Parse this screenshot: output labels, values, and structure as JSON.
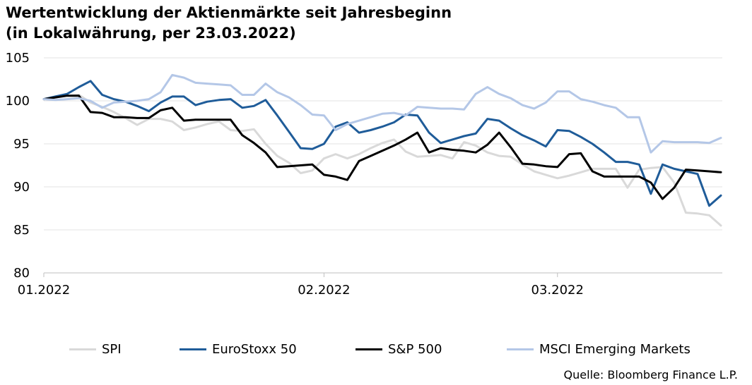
{
  "chart_data": {
    "type": "line",
    "title": "Wertentwicklung der Aktienmärkte seit Jahresbeginn",
    "subtitle": "(in Lokalwährung, per 23.03.2022)",
    "xlabel": "",
    "ylabel": "",
    "x_ticks": [
      "01.2022",
      "02.2022",
      "03.2022"
    ],
    "x_tick_index": [
      0,
      24,
      44
    ],
    "y_ticks": [
      80,
      85,
      90,
      95,
      100,
      105
    ],
    "ylim": [
      80,
      105
    ],
    "x_count": 59,
    "grid": true,
    "legend_position": "bottom",
    "series": [
      {
        "name": "SPI",
        "color": "#d9d9d9",
        "values": [
          100.2,
          100.5,
          100.6,
          100.7,
          99.8,
          99.3,
          98.7,
          98.0,
          97.2,
          97.9,
          97.9,
          97.6,
          96.6,
          96.9,
          97.3,
          97.6,
          96.6,
          96.5,
          96.7,
          95.0,
          93.6,
          92.8,
          91.6,
          91.9,
          93.3,
          93.8,
          93.3,
          93.8,
          94.5,
          95.1,
          95.5,
          94.1,
          93.5,
          93.6,
          93.7,
          93.3,
          95.2,
          94.8,
          94.0,
          93.6,
          93.5,
          92.6,
          91.8,
          91.4,
          91.0,
          91.3,
          91.7,
          92.1,
          92.1,
          92.1,
          89.9,
          92.0,
          92.2,
          92.3,
          90.5,
          87.0,
          86.9,
          86.7,
          85.5
        ]
      },
      {
        "name": "EuroStoxx 50",
        "color": "#1f5c99",
        "values": [
          100.2,
          100.5,
          100.8,
          101.6,
          102.3,
          100.7,
          100.2,
          99.9,
          99.4,
          98.8,
          99.8,
          100.5,
          100.5,
          99.5,
          99.9,
          100.1,
          100.2,
          99.2,
          99.4,
          100.1,
          98.3,
          96.4,
          94.5,
          94.4,
          95.0,
          97.0,
          97.5,
          96.3,
          96.6,
          97.0,
          97.5,
          98.4,
          98.3,
          96.3,
          95.1,
          95.5,
          95.9,
          96.2,
          97.9,
          97.7,
          96.8,
          96.0,
          95.4,
          94.7,
          96.6,
          96.5,
          95.8,
          95.0,
          94.0,
          92.9,
          92.9,
          92.6,
          89.2,
          92.6,
          92.1,
          91.8,
          91.5,
          87.8,
          89.0
        ]
      },
      {
        "name": "S&P 500",
        "color": "#000000",
        "values": [
          100.2,
          100.4,
          100.6,
          100.6,
          98.7,
          98.6,
          98.1,
          98.1,
          98.0,
          98.0,
          98.9,
          99.2,
          97.7,
          97.8,
          97.8,
          97.8,
          97.8,
          96.0,
          95.1,
          94.0,
          92.3,
          92.4,
          92.5,
          92.6,
          91.4,
          91.2,
          90.8,
          93.0,
          93.6,
          94.2,
          94.8,
          95.5,
          96.3,
          94.0,
          94.5,
          94.3,
          94.2,
          94.0,
          94.9,
          96.3,
          94.6,
          92.7,
          92.6,
          92.4,
          92.3,
          93.8,
          93.9,
          91.8,
          91.2,
          91.2,
          91.2,
          91.2,
          90.5,
          88.6,
          89.9,
          92.0,
          91.9,
          91.8,
          91.7
        ]
      },
      {
        "name": "MSCI Emerging Markets",
        "color": "#b4c7e7",
        "values": [
          100.2,
          100.1,
          100.2,
          100.3,
          100.0,
          99.2,
          99.8,
          99.9,
          100.0,
          100.2,
          101.0,
          103.0,
          102.7,
          102.1,
          102.0,
          101.9,
          101.8,
          100.7,
          100.7,
          102.0,
          101.0,
          100.4,
          99.5,
          98.4,
          98.3,
          96.6,
          97.3,
          97.7,
          98.1,
          98.5,
          98.6,
          98.3,
          99.3,
          99.2,
          99.1,
          99.1,
          99.0,
          100.8,
          101.6,
          100.8,
          100.3,
          99.5,
          99.1,
          99.8,
          101.1,
          101.1,
          100.2,
          99.9,
          99.5,
          99.2,
          98.1,
          98.1,
          94.0,
          95.3,
          95.2,
          95.2,
          95.2,
          95.1,
          95.7
        ]
      }
    ]
  },
  "source": "Quelle: Bloomberg Finance L.P."
}
